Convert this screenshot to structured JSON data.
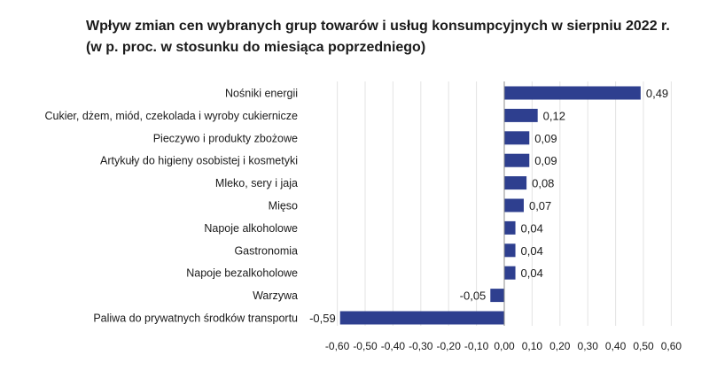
{
  "chart_data": {
    "type": "bar",
    "orientation": "horizontal",
    "title_line1": "Wpływ zmian cen wybranych grup towarów i usług konsumpcyjnych w sierpniu 2022 r.",
    "title_line2": "(w p. proc. w stosunku do miesiąca poprzedniego)",
    "xlabel": "",
    "ylabel": "",
    "xlim": [
      -0.6,
      0.6
    ],
    "grid": true,
    "color": "#2e3f8f",
    "categories": [
      "Nośniki energii",
      "Cukier, dżem, miód, czekolada i wyroby cukiernicze",
      "Pieczywo i produkty zbożowe",
      "Artykuły do higieny osobistej i kosmetyki",
      "Mleko, sery i jaja",
      "Mięso",
      "Napoje alkoholowe",
      "Gastronomia",
      "Napoje bezalkoholowe",
      "Warzywa",
      "Paliwa do prywatnych środków transportu"
    ],
    "values": [
      0.49,
      0.12,
      0.09,
      0.09,
      0.08,
      0.07,
      0.04,
      0.04,
      0.04,
      -0.05,
      -0.59
    ],
    "value_labels": [
      "0,49",
      "0,12",
      "0,09",
      "0,09",
      "0,08",
      "0,07",
      "0,04",
      "0,04",
      "0,04",
      "-0,05",
      "-0,59"
    ],
    "ticks": [
      -0.6,
      -0.5,
      -0.4,
      -0.3,
      -0.2,
      -0.1,
      0,
      0.1,
      0.2,
      0.3,
      0.4,
      0.5,
      0.6
    ],
    "tick_labels": [
      "-0,60",
      "-0,50",
      "-0,40",
      "-0,30",
      "-0,20",
      "-0,10",
      "0,00",
      "0,10",
      "0,20",
      "0,30",
      "0,40",
      "0,50",
      "0,60"
    ]
  }
}
